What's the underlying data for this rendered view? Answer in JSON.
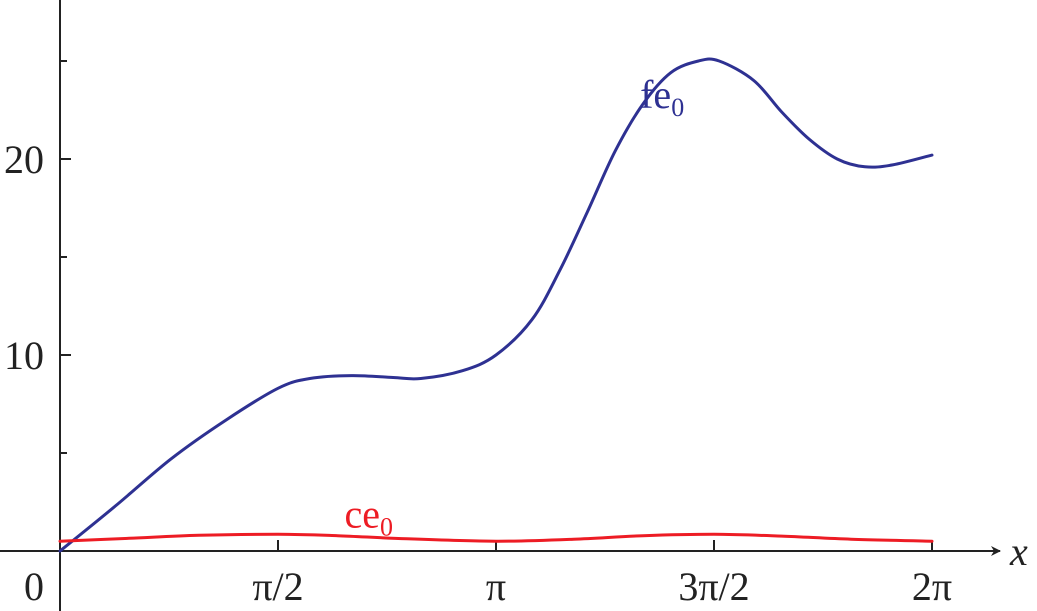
{
  "chart_data": {
    "type": "line",
    "title": "",
    "xlabel": "x",
    "ylabel": "",
    "xlim": [
      0,
      6.2832
    ],
    "ylim": [
      -0.3,
      28
    ],
    "grid": false,
    "x_ticks": [
      {
        "value": 1.5708,
        "label": "π/2"
      },
      {
        "value": 3.1416,
        "label": "π"
      },
      {
        "value": 4.7124,
        "label": "3π/2"
      },
      {
        "value": 6.2832,
        "label": "2π"
      }
    ],
    "y_ticks": [
      {
        "value": 0,
        "label": "0"
      },
      {
        "value": 10,
        "label": "10"
      },
      {
        "value": 20,
        "label": "20"
      }
    ],
    "y_minor_ticks": [
      5,
      15,
      25
    ],
    "series": [
      {
        "name": "fe",
        "subscript": "0",
        "color": "#2e3192",
        "label_at": [
          4.18,
          22.6
        ],
        "points": [
          [
            0,
            0
          ],
          [
            0.4,
            2.3
          ],
          [
            0.8,
            4.7
          ],
          [
            1.2,
            6.7
          ],
          [
            1.5708,
            8.3
          ],
          [
            1.8,
            8.8
          ],
          [
            2.1,
            8.95
          ],
          [
            2.4,
            8.85
          ],
          [
            2.6,
            8.8
          ],
          [
            2.9,
            9.2
          ],
          [
            3.1416,
            10.0
          ],
          [
            3.4,
            11.8
          ],
          [
            3.6,
            14.3
          ],
          [
            3.8,
            17.3
          ],
          [
            4.0,
            20.4
          ],
          [
            4.2,
            22.8
          ],
          [
            4.4,
            24.4
          ],
          [
            4.6,
            25.0
          ],
          [
            4.75,
            25.0
          ],
          [
            5.0,
            24.0
          ],
          [
            5.2,
            22.4
          ],
          [
            5.4,
            21.0
          ],
          [
            5.6,
            20.0
          ],
          [
            5.8,
            19.6
          ],
          [
            6.0,
            19.7
          ],
          [
            6.2832,
            20.2
          ]
        ]
      },
      {
        "name": "ce",
        "subscript": "0",
        "color": "#ed1c24",
        "label_at": [
          2.05,
          1.2
        ],
        "points": [
          [
            0,
            0.5
          ],
          [
            0.5,
            0.65
          ],
          [
            1.0,
            0.8
          ],
          [
            1.5708,
            0.85
          ],
          [
            2.0,
            0.78
          ],
          [
            2.5,
            0.62
          ],
          [
            3.1416,
            0.5
          ],
          [
            3.7,
            0.6
          ],
          [
            4.2,
            0.78
          ],
          [
            4.7124,
            0.85
          ],
          [
            5.2,
            0.76
          ],
          [
            5.7,
            0.6
          ],
          [
            6.2832,
            0.5
          ]
        ]
      }
    ]
  }
}
